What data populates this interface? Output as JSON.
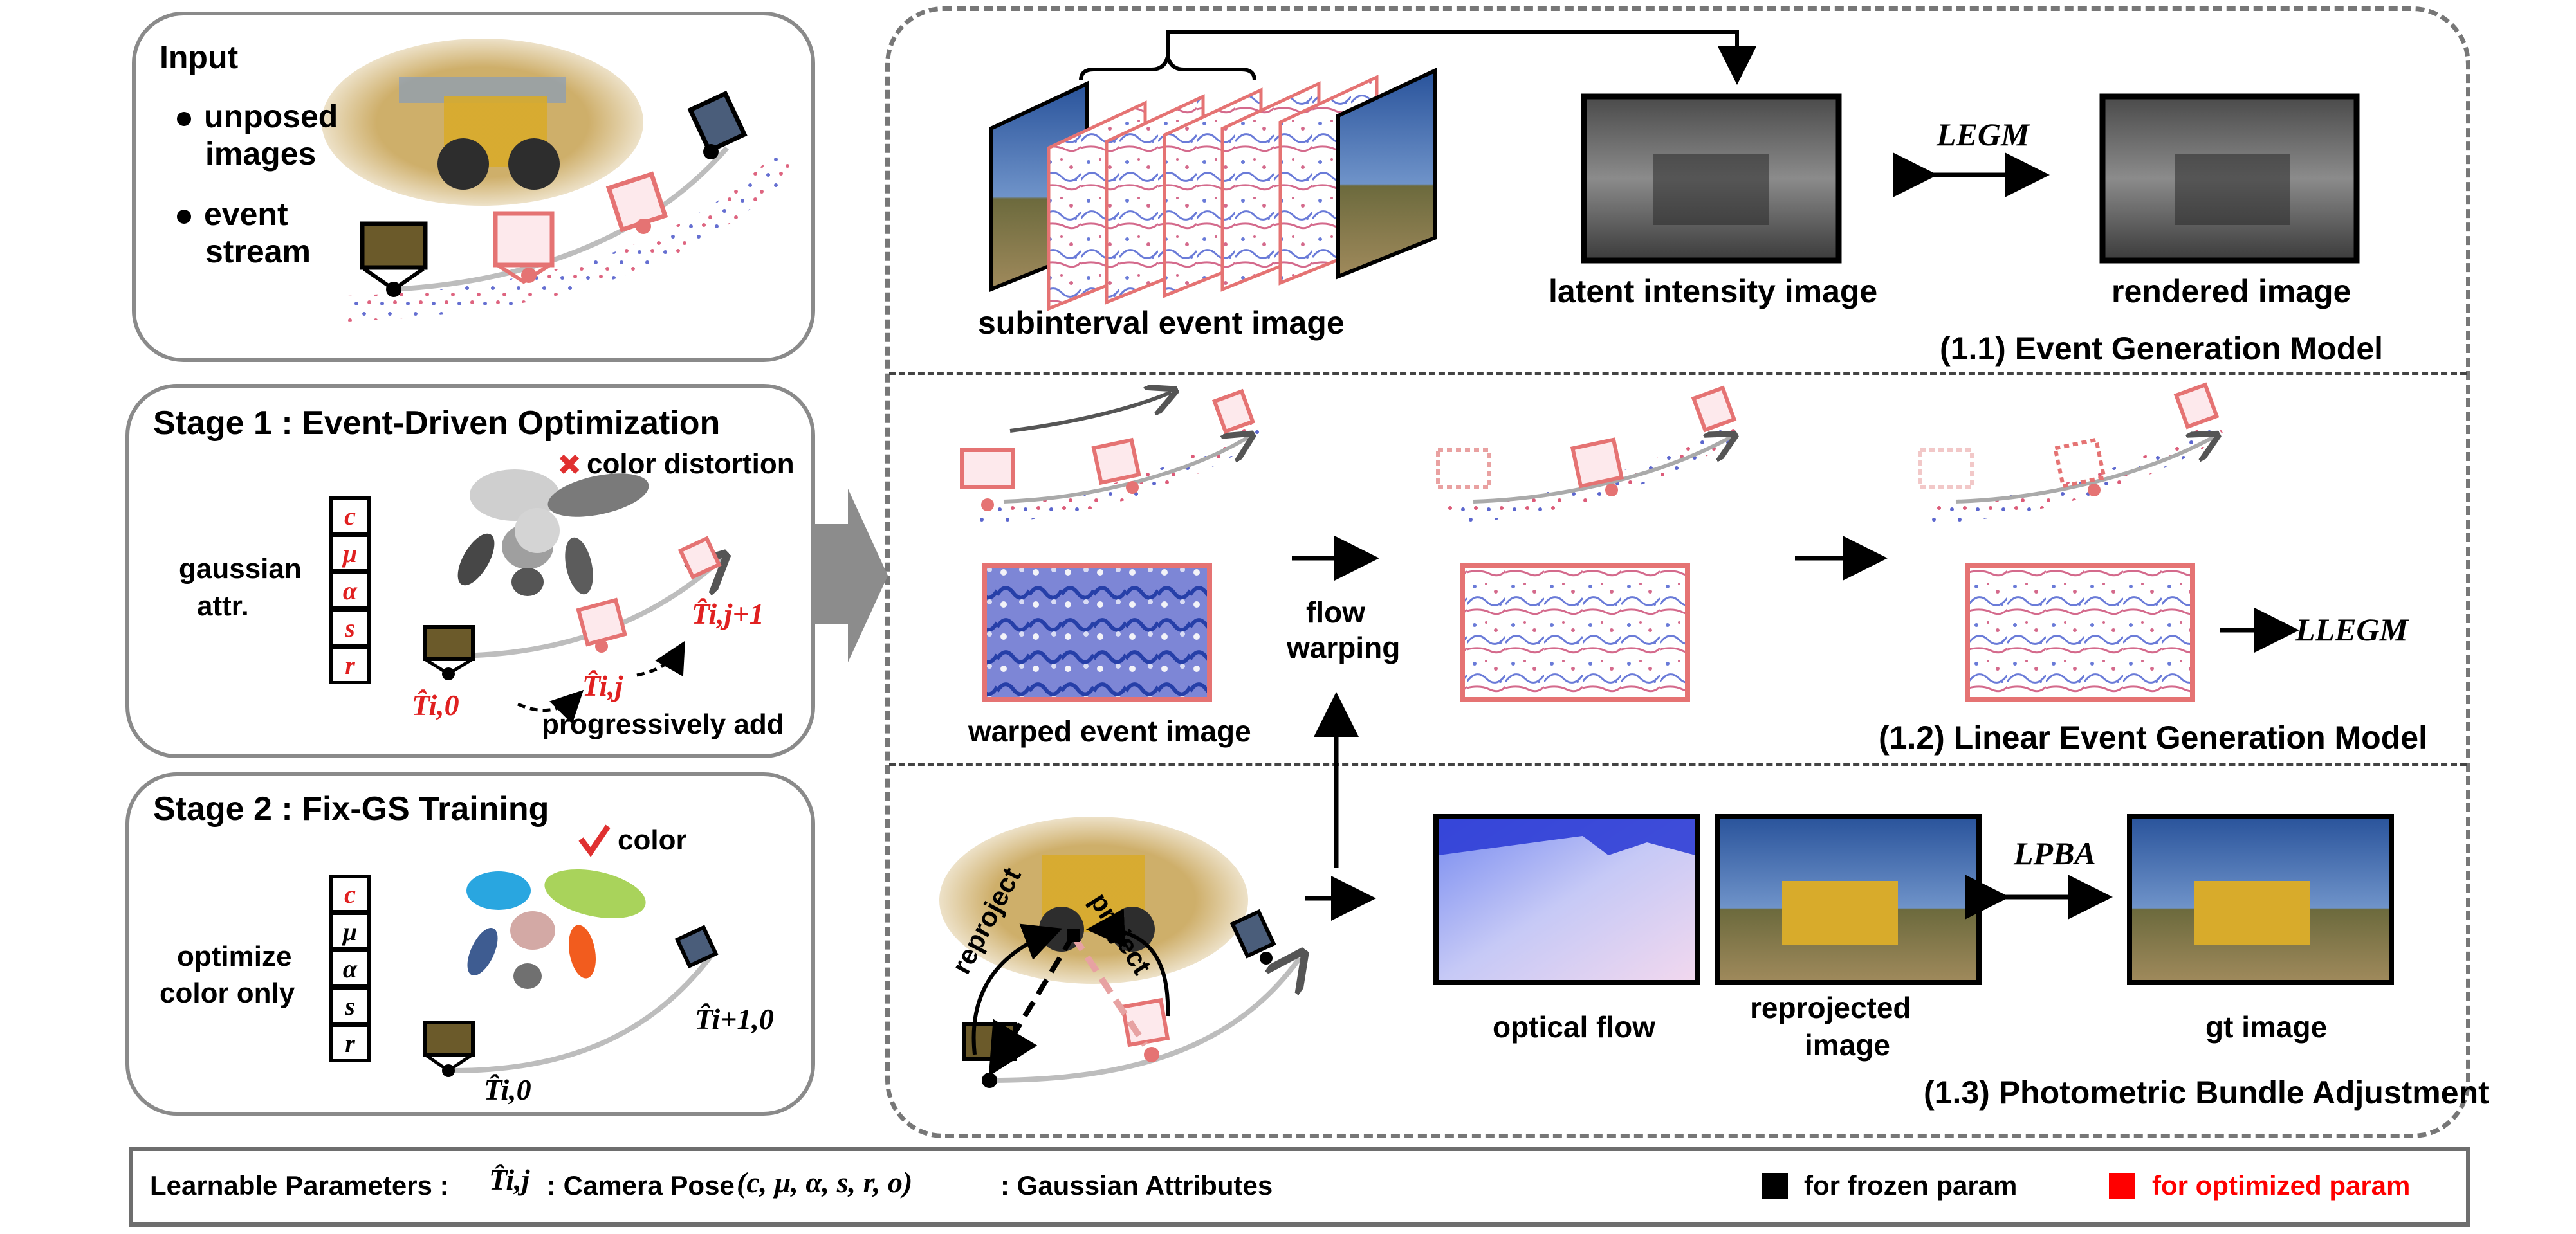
{
  "input_panel": {
    "title": "Input",
    "bullets": [
      "unposed",
      "images",
      "event",
      "stream"
    ]
  },
  "stage1": {
    "title": "Stage 1 : Event-Driven Optimization",
    "color_distortion": "color distortion",
    "gaussian_label_1": "gaussian",
    "gaussian_label_2": "attr.",
    "attributes": [
      "c",
      "μ",
      "α",
      "s",
      "r"
    ],
    "pose_i0": "T̂i,0",
    "pose_ij": "T̂i,j",
    "pose_ij1": "T̂i,j+1",
    "progressively_add": "progressively add"
  },
  "stage2": {
    "title": "Stage 2 : Fix-GS Training",
    "color_label": "color",
    "optimize_1": "optimize",
    "optimize_2": "color only",
    "attributes": [
      "c",
      "μ",
      "α",
      "s",
      "r"
    ],
    "pose_i0": "T̂i,0",
    "pose_i10": "T̂i+1,0"
  },
  "section11": {
    "subinterval": "subinterval event image",
    "latent": "latent intensity image",
    "rendered": "rendered image",
    "loss": "LEGM",
    "title": "(1.1) Event Generation Model"
  },
  "section12": {
    "warped": "warped event image",
    "flow_1": "flow",
    "flow_2": "warping",
    "loss": "LLEGM",
    "title": "(1.2) Linear Event Generation Model"
  },
  "section13": {
    "reproject": "reproject",
    "project": "project",
    "optical_flow": "optical flow",
    "reprojected_1": "reprojected",
    "reprojected_2": "image",
    "gt": "gt image",
    "loss": "LPBA",
    "title": "(1.3) Photometric Bundle Adjustment"
  },
  "legend": {
    "learnable": "Learnable Parameters :",
    "pose_symbol": "T̂i,j",
    "camera_pose": ": Camera Pose",
    "attr_tuple": "(c, μ, α, s, r, o)",
    "gaussian_attrs": ": Gaussian Attributes",
    "frozen": "for frozen param",
    "optimized": "for optimized param"
  },
  "colors": {
    "frozen": "#000000",
    "optimized": "#ff0000",
    "frame_red": "#e57373",
    "panel_border": "#8a8a8a"
  }
}
